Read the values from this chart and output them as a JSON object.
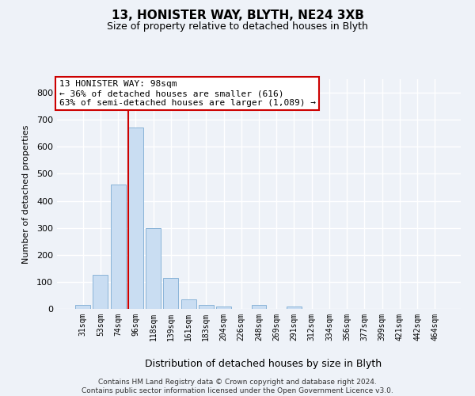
{
  "title1": "13, HONISTER WAY, BLYTH, NE24 3XB",
  "title2": "Size of property relative to detached houses in Blyth",
  "xlabel": "Distribution of detached houses by size in Blyth",
  "ylabel": "Number of detached properties",
  "categories": [
    "31sqm",
    "53sqm",
    "74sqm",
    "96sqm",
    "118sqm",
    "139sqm",
    "161sqm",
    "183sqm",
    "204sqm",
    "226sqm",
    "248sqm",
    "269sqm",
    "291sqm",
    "312sqm",
    "334sqm",
    "356sqm",
    "377sqm",
    "399sqm",
    "421sqm",
    "442sqm",
    "464sqm"
  ],
  "bar_heights": [
    15,
    125,
    460,
    670,
    300,
    115,
    35,
    15,
    10,
    0,
    15,
    0,
    8,
    0,
    0,
    0,
    0,
    0,
    0,
    0,
    0
  ],
  "bar_color": "#c9ddf2",
  "bar_edge_color": "#8ab4d8",
  "vline_x_bin": 3,
  "vline_color": "#cc0000",
  "annotation_text": "13 HONISTER WAY: 98sqm\n← 36% of detached houses are smaller (616)\n63% of semi-detached houses are larger (1,089) →",
  "annotation_box_color": "white",
  "annotation_box_edge": "#cc0000",
  "ylim": [
    0,
    850
  ],
  "yticks": [
    0,
    100,
    200,
    300,
    400,
    500,
    600,
    700,
    800
  ],
  "footer": "Contains HM Land Registry data © Crown copyright and database right 2024.\nContains public sector information licensed under the Open Government Licence v3.0.",
  "bg_color": "#eef2f8",
  "grid_color": "white"
}
